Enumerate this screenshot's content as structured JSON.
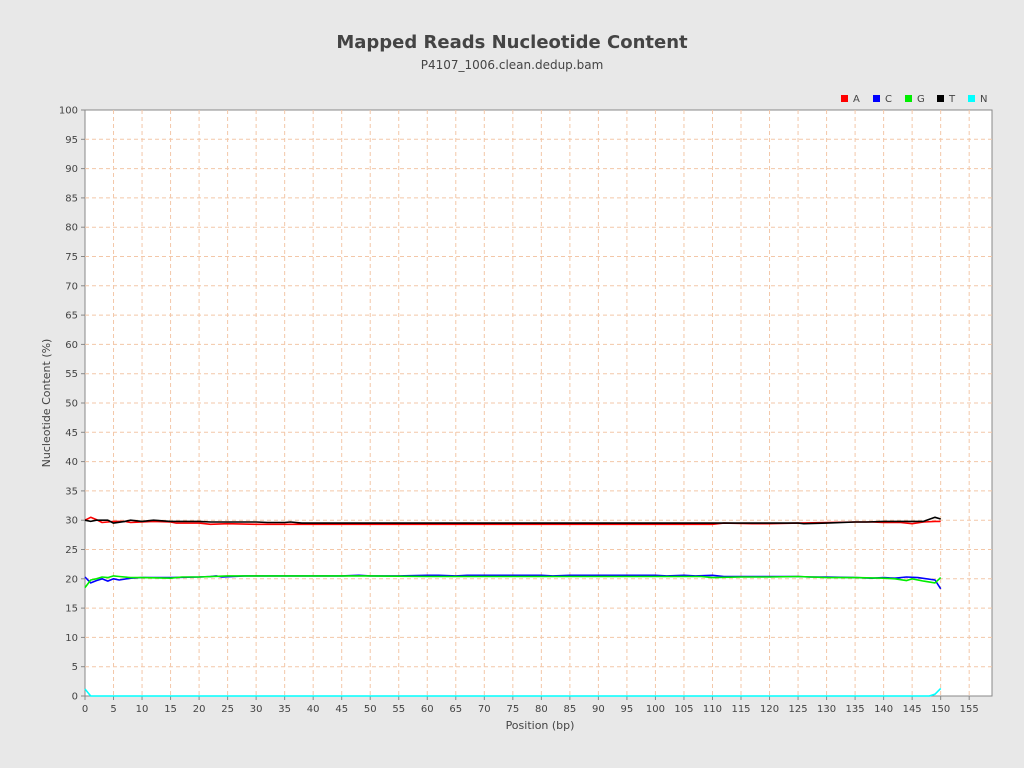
{
  "chart_data": {
    "type": "line",
    "title": "Mapped Reads Nucleotide Content",
    "subtitle": "P4107_1006.clean.dedup.bam",
    "xlabel": "Position (bp)",
    "ylabel": "Nucleotide Content (%)",
    "xlim": [
      0,
      159
    ],
    "ylim": [
      0,
      100
    ],
    "x_ticks": [
      0,
      5,
      10,
      15,
      20,
      25,
      30,
      35,
      40,
      45,
      50,
      55,
      60,
      65,
      70,
      75,
      80,
      85,
      90,
      95,
      100,
      105,
      110,
      115,
      120,
      125,
      130,
      135,
      140,
      145,
      150,
      155
    ],
    "y_ticks": [
      0,
      5,
      10,
      15,
      20,
      25,
      30,
      35,
      40,
      45,
      50,
      55,
      60,
      65,
      70,
      75,
      80,
      85,
      90,
      95,
      100
    ],
    "grid": true,
    "legend_position": "top-right",
    "series": [
      {
        "name": "A",
        "color": "#ff0000",
        "points": [
          [
            0,
            30.0
          ],
          [
            1,
            30.5
          ],
          [
            2,
            30.1
          ],
          [
            3,
            29.6
          ],
          [
            5,
            29.8
          ],
          [
            7,
            29.8
          ],
          [
            8,
            29.6
          ],
          [
            10,
            29.7
          ],
          [
            12,
            29.8
          ],
          [
            15,
            29.7
          ],
          [
            16,
            29.5
          ],
          [
            20,
            29.5
          ],
          [
            22,
            29.3
          ],
          [
            25,
            29.4
          ],
          [
            30,
            29.3
          ],
          [
            35,
            29.3
          ],
          [
            40,
            29.3
          ],
          [
            60,
            29.3
          ],
          [
            80,
            29.3
          ],
          [
            100,
            29.3
          ],
          [
            110,
            29.3
          ],
          [
            112,
            29.5
          ],
          [
            117,
            29.4
          ],
          [
            120,
            29.4
          ],
          [
            125,
            29.5
          ],
          [
            130,
            29.6
          ],
          [
            135,
            29.7
          ],
          [
            138,
            29.7
          ],
          [
            140,
            29.6
          ],
          [
            143,
            29.6
          ],
          [
            145,
            29.4
          ],
          [
            147,
            29.7
          ],
          [
            149,
            29.8
          ],
          [
            150,
            29.8
          ]
        ]
      },
      {
        "name": "C",
        "color": "#0000ff",
        "points": [
          [
            0,
            20.3
          ],
          [
            1,
            19.3
          ],
          [
            2,
            19.7
          ],
          [
            3,
            20.0
          ],
          [
            4,
            19.6
          ],
          [
            5,
            20.0
          ],
          [
            6,
            19.8
          ],
          [
            8,
            20.1
          ],
          [
            10,
            20.2
          ],
          [
            15,
            20.2
          ],
          [
            20,
            20.3
          ],
          [
            22,
            20.4
          ],
          [
            23,
            20.5
          ],
          [
            24,
            20.3
          ],
          [
            28,
            20.5
          ],
          [
            35,
            20.5
          ],
          [
            45,
            20.5
          ],
          [
            48,
            20.6
          ],
          [
            50,
            20.5
          ],
          [
            55,
            20.5
          ],
          [
            60,
            20.6
          ],
          [
            62,
            20.6
          ],
          [
            65,
            20.5
          ],
          [
            67,
            20.6
          ],
          [
            80,
            20.6
          ],
          [
            82,
            20.5
          ],
          [
            85,
            20.6
          ],
          [
            100,
            20.6
          ],
          [
            102,
            20.5
          ],
          [
            105,
            20.6
          ],
          [
            107,
            20.5
          ],
          [
            110,
            20.6
          ],
          [
            112,
            20.4
          ],
          [
            120,
            20.4
          ],
          [
            125,
            20.4
          ],
          [
            127,
            20.3
          ],
          [
            130,
            20.3
          ],
          [
            135,
            20.2
          ],
          [
            138,
            20.1
          ],
          [
            140,
            20.2
          ],
          [
            142,
            20.1
          ],
          [
            144,
            20.3
          ],
          [
            146,
            20.2
          ],
          [
            149,
            19.8
          ],
          [
            150,
            18.3
          ]
        ]
      },
      {
        "name": "G",
        "color": "#00ee00",
        "points": [
          [
            0,
            18.5
          ],
          [
            1,
            19.8
          ],
          [
            2,
            20.0
          ],
          [
            3,
            20.3
          ],
          [
            4,
            20.2
          ],
          [
            5,
            20.5
          ],
          [
            6,
            20.4
          ],
          [
            8,
            20.2
          ],
          [
            10,
            20.2
          ],
          [
            15,
            20.1
          ],
          [
            17,
            20.3
          ],
          [
            20,
            20.3
          ],
          [
            25,
            20.5
          ],
          [
            30,
            20.5
          ],
          [
            40,
            20.5
          ],
          [
            50,
            20.5
          ],
          [
            60,
            20.4
          ],
          [
            66,
            20.4
          ],
          [
            80,
            20.4
          ],
          [
            100,
            20.4
          ],
          [
            108,
            20.4
          ],
          [
            110,
            20.2
          ],
          [
            115,
            20.3
          ],
          [
            120,
            20.3
          ],
          [
            125,
            20.4
          ],
          [
            130,
            20.2
          ],
          [
            135,
            20.2
          ],
          [
            140,
            20.1
          ],
          [
            142,
            20.0
          ],
          [
            144,
            19.7
          ],
          [
            145,
            20.0
          ],
          [
            147,
            19.6
          ],
          [
            149,
            19.3
          ],
          [
            150,
            20.2
          ]
        ]
      },
      {
        "name": "T",
        "color": "#000000",
        "points": [
          [
            0,
            30.0
          ],
          [
            1,
            29.8
          ],
          [
            2,
            30.0
          ],
          [
            3,
            30.0
          ],
          [
            4,
            30.0
          ],
          [
            5,
            29.5
          ],
          [
            7,
            29.8
          ],
          [
            8,
            30.0
          ],
          [
            10,
            29.8
          ],
          [
            12,
            30.0
          ],
          [
            15,
            29.8
          ],
          [
            20,
            29.8
          ],
          [
            22,
            29.7
          ],
          [
            25,
            29.7
          ],
          [
            30,
            29.7
          ],
          [
            32,
            29.6
          ],
          [
            35,
            29.6
          ],
          [
            36,
            29.7
          ],
          [
            38,
            29.5
          ],
          [
            45,
            29.5
          ],
          [
            60,
            29.5
          ],
          [
            80,
            29.5
          ],
          [
            100,
            29.5
          ],
          [
            110,
            29.5
          ],
          [
            115,
            29.5
          ],
          [
            120,
            29.5
          ],
          [
            125,
            29.5
          ],
          [
            126,
            29.4
          ],
          [
            130,
            29.5
          ],
          [
            135,
            29.7
          ],
          [
            137,
            29.7
          ],
          [
            140,
            29.8
          ],
          [
            143,
            29.8
          ],
          [
            145,
            29.8
          ],
          [
            147,
            29.8
          ],
          [
            149,
            30.5
          ],
          [
            150,
            30.2
          ]
        ]
      },
      {
        "name": "N",
        "color": "#00ffff",
        "points": [
          [
            0,
            1.2
          ],
          [
            1,
            0.0
          ],
          [
            5,
            0.0
          ],
          [
            50,
            0.0
          ],
          [
            100,
            0.0
          ],
          [
            145,
            0.0
          ],
          [
            148,
            0.0
          ],
          [
            149,
            0.3
          ],
          [
            150,
            1.3
          ]
        ]
      }
    ]
  }
}
